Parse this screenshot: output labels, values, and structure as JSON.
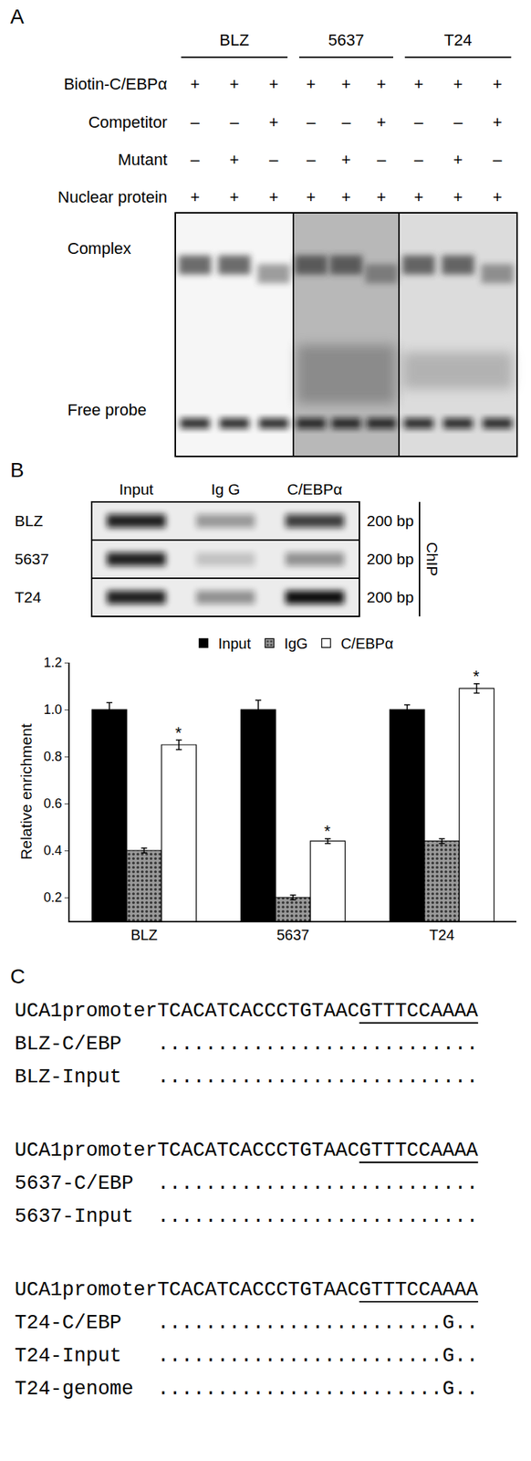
{
  "panel_a": {
    "label": "A",
    "groups": [
      "BLZ",
      "5637",
      "T24"
    ],
    "rows": [
      {
        "name": "Biotin-C/EBPα",
        "lanes": [
          "+",
          "+",
          "+",
          "+",
          "+",
          "+",
          "+",
          "+",
          "+"
        ]
      },
      {
        "name": "Competitor",
        "lanes": [
          "–",
          "–",
          "+",
          "–",
          "–",
          "+",
          "–",
          "–",
          "+"
        ]
      },
      {
        "name": "Mutant",
        "lanes": [
          "–",
          "+",
          "–",
          "–",
          "+",
          "–",
          "–",
          "+",
          "–"
        ]
      },
      {
        "name": "Nuclear protein",
        "lanes": [
          "+",
          "+",
          "+",
          "+",
          "+",
          "+",
          "+",
          "+",
          "+"
        ]
      }
    ],
    "bands": [
      "Complex",
      "Free probe"
    ]
  },
  "panel_b": {
    "label": "B",
    "gel": {
      "columns": [
        "Input",
        "Ig G",
        "C/EBPα"
      ],
      "rows": [
        "BLZ",
        "5637",
        "T24"
      ],
      "size_labels": [
        "200 bp",
        "200 bp",
        "200 bp"
      ],
      "method": "ChIP"
    }
  },
  "chart_data": {
    "type": "bar",
    "categories": [
      "BLZ",
      "5637",
      "T24"
    ],
    "series": [
      {
        "name": "Input",
        "color": "#000000",
        "values": [
          1.0,
          1.0,
          1.0
        ],
        "errors": [
          0.03,
          0.04,
          0.02
        ]
      },
      {
        "name": "IgG",
        "color": "#9a9a9a",
        "marker": "dots",
        "values": [
          0.4,
          0.2,
          0.44
        ],
        "errors": [
          0.01,
          0.01,
          0.01
        ]
      },
      {
        "name": "C/EBPα",
        "color": "#ffffff",
        "values": [
          0.85,
          0.44,
          1.09
        ],
        "errors": [
          0.02,
          0.01,
          0.02
        ]
      }
    ],
    "y_label": "Relative enrichment",
    "ylim": [
      0.1,
      1.2
    ],
    "yticks": [
      0.2,
      0.4,
      0.6,
      0.8,
      {
        "value": 1,
        "label": "1.0"
      },
      1.2
    ],
    "legend": "top",
    "grid": false,
    "annotations": [
      {
        "category": "BLZ",
        "series": "C/EBPα",
        "text": "*"
      },
      {
        "category": "5637",
        "series": "C/EBPα",
        "text": "*"
      },
      {
        "category": "T24",
        "series": "C/EBPα",
        "text": "*"
      }
    ]
  },
  "panel_c": {
    "label": "C",
    "blocks": [
      {
        "reference_name": "UCA1promoter",
        "reference_prefix": "TCACATCACCCTGTAAC",
        "reference_motif": "GTTTCCAAAA",
        "rows": [
          {
            "name": "BLZ-C/EBP",
            "sequence": "..........................."
          },
          {
            "name": "BLZ-Input",
            "sequence": "..........................."
          }
        ]
      },
      {
        "reference_name": "UCA1promoter",
        "reference_prefix": "TCACATCACCCTGTAAC",
        "reference_motif": "GTTTCCAAAA",
        "rows": [
          {
            "name": "5637-C/EBP",
            "sequence": "..........................."
          },
          {
            "name": "5637-Input",
            "sequence": "..........................."
          }
        ]
      },
      {
        "reference_name": "UCA1promoter",
        "reference_prefix": "TCACATCACCCTGTAAC",
        "reference_motif": "GTTTCCAAAA",
        "rows": [
          {
            "name": "T24-C/EBP",
            "sequence": "........................G.."
          },
          {
            "name": "T24-Input",
            "sequence": "........................G.."
          },
          {
            "name": "T24-genome",
            "sequence": "........................G.."
          }
        ]
      }
    ]
  }
}
